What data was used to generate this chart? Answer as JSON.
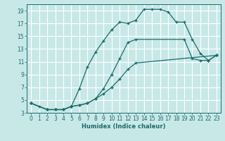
{
  "bg_color": "#c8e8e8",
  "grid_color": "#e0f0f0",
  "line_color": "#1a6b6b",
  "xlabel": "Humidex (Indice chaleur)",
  "xlim": [
    -0.5,
    23.5
  ],
  "ylim": [
    3,
    20
  ],
  "xticks": [
    0,
    1,
    2,
    3,
    4,
    5,
    6,
    7,
    8,
    9,
    10,
    11,
    12,
    13,
    14,
    15,
    16,
    17,
    18,
    19,
    20,
    21,
    22,
    23
  ],
  "yticks": [
    3,
    5,
    7,
    9,
    11,
    13,
    15,
    17,
    19
  ],
  "curve1_x": [
    0,
    1,
    2,
    3,
    4,
    5,
    6,
    7,
    8,
    9,
    10,
    11,
    12,
    13,
    14,
    15,
    16,
    17,
    18,
    19,
    20,
    21,
    22,
    23
  ],
  "curve1_y": [
    4.5,
    4.0,
    3.5,
    3.5,
    3.5,
    4.0,
    6.8,
    10.2,
    12.5,
    14.3,
    16.0,
    17.2,
    17.0,
    17.5,
    19.2,
    19.2,
    19.2,
    18.8,
    17.2,
    17.2,
    14.5,
    12.3,
    11.2,
    12.0
  ],
  "curve2_x": [
    0,
    2,
    3,
    4,
    5,
    6,
    7,
    8,
    9,
    10,
    11,
    12,
    13,
    19,
    20,
    21,
    22,
    23
  ],
  "curve2_y": [
    4.5,
    3.5,
    3.5,
    3.5,
    4.0,
    4.2,
    4.5,
    5.2,
    6.8,
    9.0,
    11.5,
    14.0,
    14.5,
    14.5,
    11.5,
    11.2,
    11.2,
    12.0
  ],
  "curve3_x": [
    0,
    2,
    3,
    4,
    5,
    6,
    7,
    8,
    9,
    10,
    11,
    12,
    13,
    23
  ],
  "curve3_y": [
    4.5,
    3.5,
    3.5,
    3.5,
    4.0,
    4.2,
    4.5,
    5.2,
    6.0,
    7.0,
    8.3,
    9.8,
    10.8,
    12.0
  ]
}
